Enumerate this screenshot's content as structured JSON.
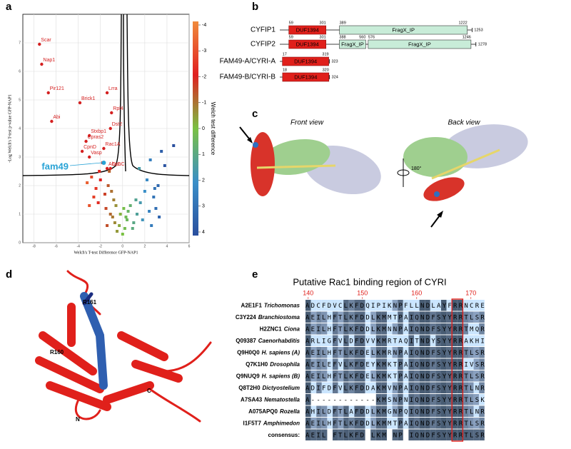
{
  "panel_labels": [
    "a",
    "b",
    "c",
    "d",
    "e"
  ],
  "chart_data": {
    "type": "scatter",
    "x_label": "Welch's T-test Difference GFP-NAP1",
    "y_label": "-Log Welch's T-test p-value GFP-NAP1",
    "xlim": [
      -9,
      6
    ],
    "ylim": [
      0,
      8
    ],
    "xticks": [
      -8,
      -6,
      -4,
      -2,
      0,
      2,
      4,
      6
    ],
    "yticks": [
      0,
      1,
      2,
      3,
      4,
      5,
      6,
      7
    ],
    "grid": true,
    "x": [
      -0.5,
      -0.3,
      0,
      0.2,
      0.4,
      -0.2,
      0.1,
      -0.6,
      0.5,
      0.3,
      -0.8,
      -1.0,
      -1.3,
      -1.6,
      -2.0,
      -2.4,
      -2.8,
      -3.2,
      -1.2,
      -1.8,
      -2.2,
      -1.5,
      -2.6,
      -3.0,
      -0.9,
      1.0,
      1.3,
      1.6,
      2.0,
      2.4,
      2.8,
      3.2,
      1.2,
      1.8,
      2.2,
      2.6,
      3.0,
      1.5,
      2.5,
      3.5,
      4.6,
      3.8,
      2.9,
      -1.1,
      -0.7,
      0.7,
      0.9,
      -1.4,
      -2.1,
      3.3
    ],
    "values": [
      0.4,
      0.6,
      0.3,
      0.5,
      0.8,
      1.0,
      1.2,
      1.3,
      1.1,
      0.9,
      1.5,
      1.8,
      2.0,
      1.7,
      2.2,
      1.9,
      2.3,
      2.1,
      2.5,
      2.8,
      1.4,
      1.2,
      1.6,
      1.3,
      0.9,
      0.7,
      1.0,
      1.4,
      1.8,
      1.1,
      1.6,
      2.0,
      1.5,
      0.8,
      2.2,
      0.6,
      1.2,
      2.6,
      2.9,
      3.2,
      3.4,
      2.7,
      1.9,
      1.0,
      0.7,
      1.3,
      0.5,
      0.6,
      2.5,
      0.9
    ],
    "annotations": [
      {
        "text": "Scar",
        "x": -7.5,
        "y": 6.95
      },
      {
        "text": "Nap1",
        "x": -7.3,
        "y": 6.25
      },
      {
        "text": "Pir121",
        "x": -6.7,
        "y": 5.25
      },
      {
        "text": "Abi",
        "x": -6.4,
        "y": 4.25
      },
      {
        "text": "Brick1",
        "x": -3.85,
        "y": 4.9
      },
      {
        "text": "Lrra",
        "x": -1.4,
        "y": 5.25
      },
      {
        "text": "Rpl4",
        "x": -1.0,
        "y": 4.55
      },
      {
        "text": "Dst2",
        "x": -1.1,
        "y": 4.0
      },
      {
        "text": "Stxbp1",
        "x": -3.0,
        "y": 3.75
      },
      {
        "text": "Cpras2",
        "x": -3.3,
        "y": 3.55
      },
      {
        "text": "Rac1A",
        "x": -1.7,
        "y": 3.3
      },
      {
        "text": "CpnD",
        "x": -3.65,
        "y": 3.2
      },
      {
        "text": "Vasp",
        "x": -3.0,
        "y": 3.0
      },
      {
        "text": "AbcC",
        "x": -1.4,
        "y": 2.6
      },
      {
        "text": "CpnC",
        "x": -1.1,
        "y": 2.6
      }
    ],
    "highlight": {
      "text": "fam49",
      "x": -1.7,
      "y": 2.8
    },
    "colorbar": {
      "label": "Welch test difference",
      "ticks": [
        -4,
        -3,
        -2,
        -1,
        0,
        1,
        2,
        3,
        4
      ]
    }
  },
  "domains": {
    "proteins": [
      {
        "name": "CYFIP1",
        "length": 1253,
        "domains": [
          {
            "name": "DUF1394",
            "start": 59,
            "end": 301
          },
          {
            "name": "FragX_IP",
            "start": 389,
            "end": 1222
          }
        ]
      },
      {
        "name": "CYFIP2",
        "length": 1278,
        "domains": [
          {
            "name": "DUF1394",
            "start": 59,
            "end": 301
          },
          {
            "name": "FragX_IP",
            "start": 388,
            "end": 560
          },
          {
            "name": "FragX_IP",
            "start": 576,
            "end": 1246
          }
        ]
      },
      {
        "name": "FAM49-A/CYRI-A",
        "length": 323,
        "domains": [
          {
            "name": "DUF1394",
            "start": 17,
            "end": 319
          }
        ]
      },
      {
        "name": "FAM49-B/CYRI-B",
        "length": 324,
        "domains": [
          {
            "name": "DUF1394",
            "start": 18,
            "end": 320
          }
        ]
      }
    ]
  },
  "structure_views": {
    "front": "Front view",
    "back": "Back view",
    "rotation": "180°"
  },
  "ribbon": {
    "labels": [
      "R161",
      "R160",
      "N",
      "C"
    ]
  },
  "alignment": {
    "title": "Putative Rac1 binding region of CYRI",
    "ruler": [
      140,
      150,
      160,
      170
    ],
    "rows": [
      {
        "id": "A2E1F1",
        "organism": "Trichomonas",
        "sequence": "ADCFDVCLKFDQIPIKNPFLLNDLAYFRRNCRE"
      },
      {
        "id": "C3Y224",
        "organism": "Branchiostoma",
        "sequence": "AEILHFTLKFDDLKMMTPAIQNDFSYYRRTLSR"
      },
      {
        "id": "H2ZNC1",
        "organism": "Ciona",
        "sequence": "AEILHFTLKFDDLKMNNPAIQNDFSYYRRTMQR"
      },
      {
        "id": "Q09387",
        "organism": "Caenorhabditis",
        "sequence": "ARLIGFVLDFDVVKMRTAQITNDYSYYRRAKHI"
      },
      {
        "id": "Q9H0Q0",
        "organism": "H. sapiens (A)",
        "sequence": "AEILHFTLKFDELKMRNPAIQNDFSYYRRTLSR"
      },
      {
        "id": "Q7K1H0",
        "organism": "Drosophila",
        "sequence": "AEILEFVLKFDEYKMKTPAIQNDFSYYRRIVSR"
      },
      {
        "id": "Q9NUQ9",
        "organism": "H. sapiens (B)",
        "sequence": "AEILHFTLKFDELKMKTPAIQNDFSYYRRTLSR"
      },
      {
        "id": "Q8T2H0",
        "organism": "Dictyostelium",
        "sequence": "ADIFDFVLKFDDAKMVNPAIQNDFSYYRRTLNR"
      },
      {
        "id": "A7SA43",
        "organism": "Nematostella",
        "sequence": "A------------KMSNPNIQNDFSYYRRTLSK"
      },
      {
        "id": "A075APQ0",
        "organism": "Rozella",
        "sequence": "AHILDFTLAFDDLKMGNPQIQNDFSYYRRTLNR"
      },
      {
        "id": "I1F5T7",
        "organism": "Amphimedon",
        "sequence": "AEILHFTLKFDDLKMMTPAIQNDFSYYRRTLSR"
      }
    ],
    "consensus_label": "consensus:",
    "consensus": "AEIL FTLKFD LKM NP IQNDFSYYRRTLSR"
  }
}
